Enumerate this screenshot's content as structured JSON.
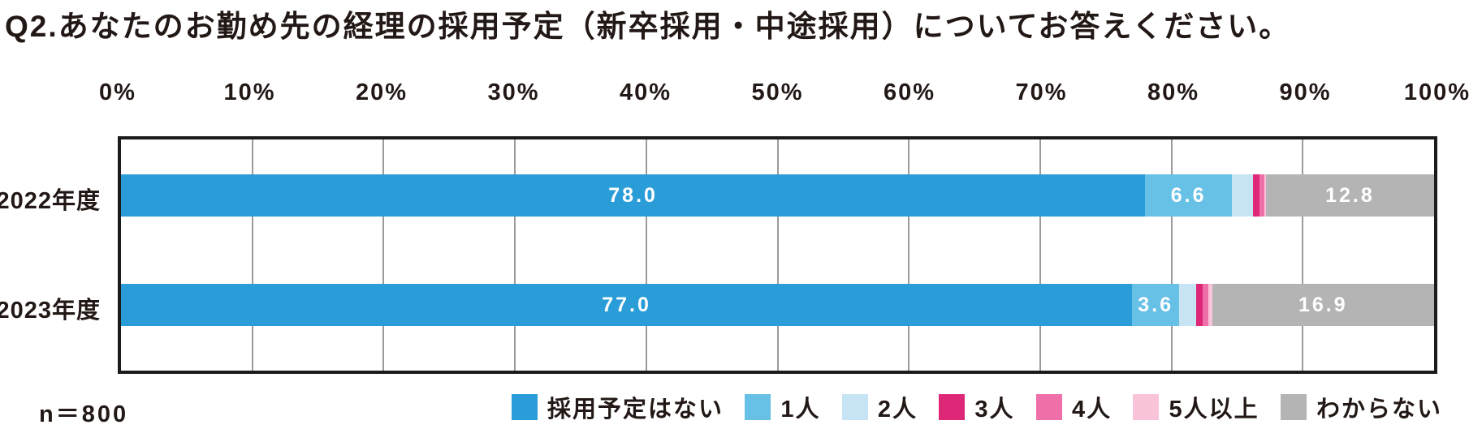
{
  "title": "Q2.あなたのお勤め先の経理の採用予定（新卒採用・中途採用）についてお答えください。",
  "sample_size": "n＝800",
  "axis": {
    "ticks": [
      "0%",
      "10%",
      "20%",
      "30%",
      "40%",
      "50%",
      "60%",
      "70%",
      "80%",
      "90%",
      "100%"
    ],
    "min": 0,
    "max": 100
  },
  "colors": {
    "text": "#221815",
    "border": "#1b1b1b",
    "gridline": "#9b9b9b",
    "bar_label": "#ffffff"
  },
  "chart_data": {
    "type": "bar",
    "orientation": "horizontal-stacked",
    "title": "Q2.あなたのお勤め先の経理の採用予定（新卒採用・中途採用）についてお答えください。",
    "categories": [
      "2022年度",
      "2023年度"
    ],
    "series": [
      {
        "name": "採用予定はない",
        "color": "#2a9dd8",
        "values": [
          78.0,
          77.0
        ],
        "labels": [
          "78.0",
          "77.0"
        ]
      },
      {
        "name": "1人",
        "color": "#67c0e6",
        "values": [
          6.6,
          3.6
        ],
        "labels": [
          "6.6",
          "3.6"
        ]
      },
      {
        "name": "2人",
        "color": "#c6e4f4",
        "values": [
          1.6,
          1.3
        ],
        "labels": [
          "",
          ""
        ]
      },
      {
        "name": "3人",
        "color": "#de2777",
        "values": [
          0.5,
          0.5
        ],
        "labels": [
          "",
          ""
        ]
      },
      {
        "name": "4人",
        "color": "#ef6fa9",
        "values": [
          0.4,
          0.4
        ],
        "labels": [
          "",
          ""
        ]
      },
      {
        "name": "5人以上",
        "color": "#f9c3da",
        "values": [
          0.1,
          0.3
        ],
        "labels": [
          "",
          ""
        ]
      },
      {
        "name": "わからない",
        "color": "#b4b4b4",
        "values": [
          12.8,
          16.9
        ],
        "labels": [
          "12.8",
          "16.9"
        ]
      }
    ],
    "xlabel": "",
    "ylabel": "",
    "xlim": [
      0,
      100
    ],
    "grid": true,
    "legend_position": "bottom",
    "note": "n＝800"
  }
}
